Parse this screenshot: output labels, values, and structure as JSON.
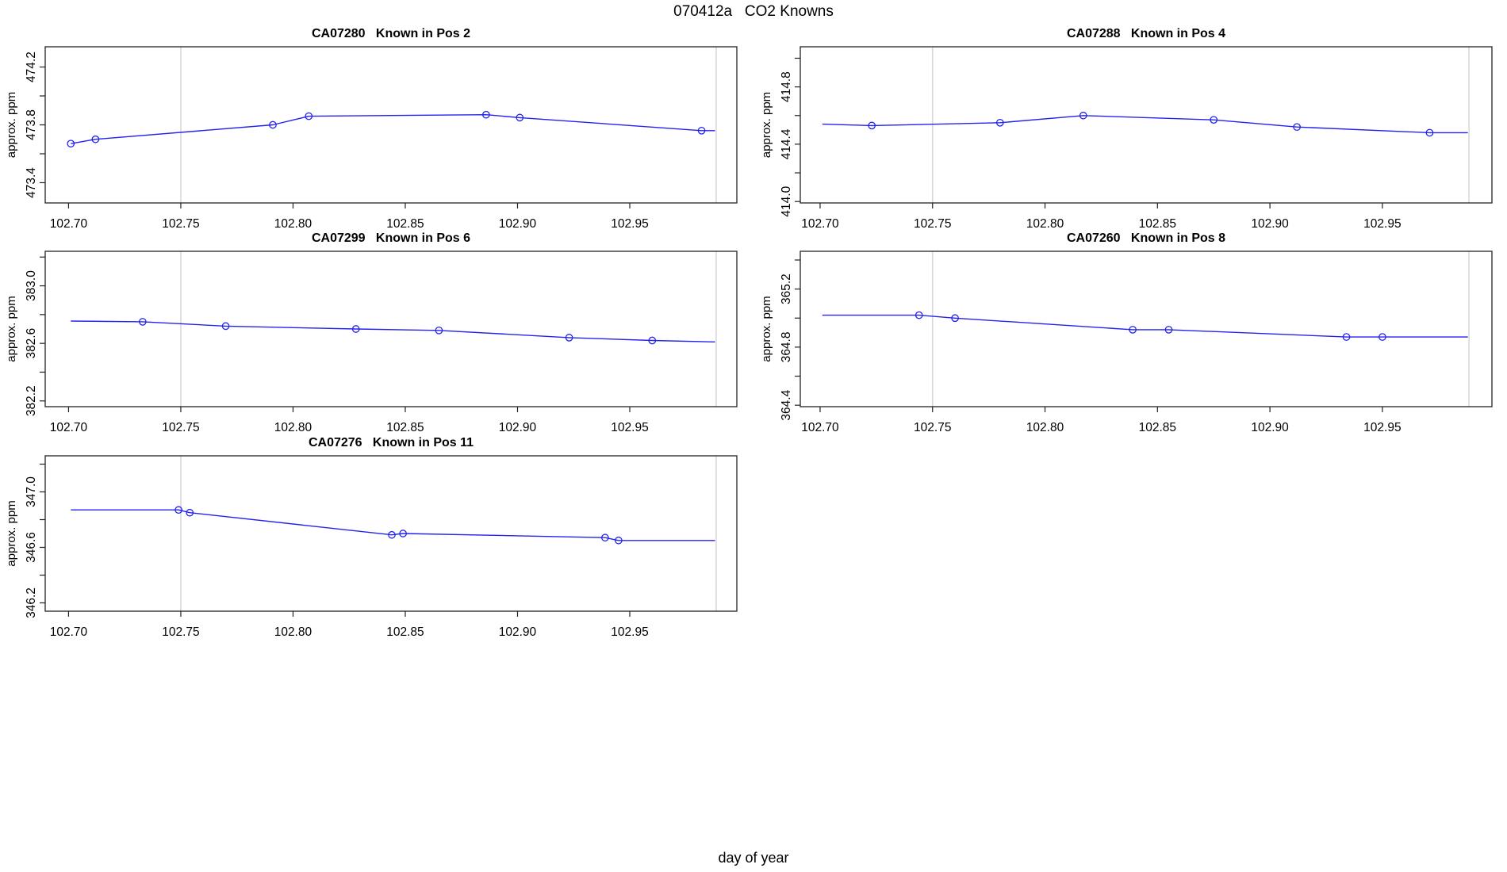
{
  "page": {
    "title": "070412a   CO2 Knowns",
    "xlabel": "day of year"
  },
  "colors": {
    "series_blue": "#2222ee",
    "reference_gray": "#d8d8d8",
    "axis_black": "#222222",
    "text_black": "#000000"
  },
  "x_ticks": [
    {
      "v": 102.7,
      "t": "102.70"
    },
    {
      "v": 102.75,
      "t": "102.75"
    },
    {
      "v": 102.8,
      "t": "102.80"
    },
    {
      "v": 102.85,
      "t": "102.85"
    },
    {
      "v": 102.9,
      "t": "102.90"
    },
    {
      "v": 102.95,
      "t": "102.95"
    }
  ],
  "chart_data": [
    {
      "type": "line",
      "title": "CA07280   Known in Pos 2",
      "ylabel": "approx. ppm",
      "grid": {
        "row": 0,
        "col": 0
      },
      "xlim": [
        102.6896,
        102.9977
      ],
      "ylim": [
        473.26,
        474.34
      ],
      "legend_position": "none",
      "grid_lines": "off",
      "yticks": [
        {
          "v": 473.4,
          "t": "473.4"
        },
        {
          "v": 473.6,
          "t": ""
        },
        {
          "v": 473.8,
          "t": "473.8"
        },
        {
          "v": 474.0,
          "t": ""
        },
        {
          "v": 474.2,
          "t": "474.2"
        }
      ],
      "vlines": [
        102.75,
        102.9885
      ],
      "line": [
        [
          102.701,
          473.67
        ],
        [
          102.712,
          473.7
        ],
        [
          102.791,
          473.8
        ],
        [
          102.807,
          473.86
        ],
        [
          102.886,
          473.87
        ],
        [
          102.901,
          473.85
        ],
        [
          102.982,
          473.76
        ],
        [
          102.988,
          473.76
        ]
      ],
      "points": [
        [
          102.701,
          473.67
        ],
        [
          102.712,
          473.7
        ],
        [
          102.791,
          473.8
        ],
        [
          102.807,
          473.86
        ],
        [
          102.886,
          473.87
        ],
        [
          102.901,
          473.85
        ],
        [
          102.982,
          473.76
        ]
      ]
    },
    {
      "type": "line",
      "title": "CA07288   Known in Pos 4",
      "ylabel": "approx. ppm",
      "grid": {
        "row": 0,
        "col": 1
      },
      "xlim": [
        102.6912,
        102.9987
      ],
      "ylim": [
        413.99,
        415.08
      ],
      "legend_position": "none",
      "grid_lines": "off",
      "yticks": [
        {
          "v": 414.0,
          "t": "414.0"
        },
        {
          "v": 414.2,
          "t": ""
        },
        {
          "v": 414.4,
          "t": "414.4"
        },
        {
          "v": 414.6,
          "t": ""
        },
        {
          "v": 414.8,
          "t": "414.8"
        },
        {
          "v": 415.0,
          "t": ""
        }
      ],
      "vlines": [
        102.75,
        102.9885
      ],
      "line": [
        [
          102.701,
          414.54
        ],
        [
          102.723,
          414.53
        ],
        [
          102.78,
          414.55
        ],
        [
          102.817,
          414.6
        ],
        [
          102.875,
          414.57
        ],
        [
          102.912,
          414.52
        ],
        [
          102.971,
          414.48
        ],
        [
          102.988,
          414.48
        ]
      ],
      "points": [
        [
          102.723,
          414.53
        ],
        [
          102.78,
          414.55
        ],
        [
          102.817,
          414.6
        ],
        [
          102.875,
          414.57
        ],
        [
          102.912,
          414.52
        ],
        [
          102.971,
          414.48
        ]
      ]
    },
    {
      "type": "line",
      "title": "CA07299   Known in Pos 6",
      "ylabel": "approx. ppm",
      "grid": {
        "row": 1,
        "col": 0
      },
      "xlim": [
        102.6896,
        102.9977
      ],
      "ylim": [
        382.16,
        383.24
      ],
      "legend_position": "none",
      "grid_lines": "off",
      "yticks": [
        {
          "v": 382.2,
          "t": "382.2"
        },
        {
          "v": 382.4,
          "t": ""
        },
        {
          "v": 382.6,
          "t": "382.6"
        },
        {
          "v": 382.8,
          "t": ""
        },
        {
          "v": 383.0,
          "t": "383.0"
        },
        {
          "v": 383.2,
          "t": ""
        }
      ],
      "vlines": [
        102.75,
        102.9885
      ],
      "line": [
        [
          102.701,
          382.755
        ],
        [
          102.733,
          382.75
        ],
        [
          102.77,
          382.72
        ],
        [
          102.828,
          382.7
        ],
        [
          102.865,
          382.69
        ],
        [
          102.923,
          382.64
        ],
        [
          102.96,
          382.62
        ],
        [
          102.988,
          382.61
        ]
      ],
      "points": [
        [
          102.733,
          382.75
        ],
        [
          102.77,
          382.72
        ],
        [
          102.828,
          382.7
        ],
        [
          102.865,
          382.69
        ],
        [
          102.923,
          382.64
        ],
        [
          102.96,
          382.62
        ]
      ]
    },
    {
      "type": "line",
      "title": "CA07260   Known in Pos 8",
      "ylabel": "approx. ppm",
      "grid": {
        "row": 1,
        "col": 1
      },
      "xlim": [
        102.6912,
        102.9987
      ],
      "ylim": [
        364.39,
        365.46
      ],
      "legend_position": "none",
      "grid_lines": "off",
      "yticks": [
        {
          "v": 364.4,
          "t": "364.4"
        },
        {
          "v": 364.6,
          "t": ""
        },
        {
          "v": 364.8,
          "t": "364.8"
        },
        {
          "v": 365.0,
          "t": ""
        },
        {
          "v": 365.2,
          "t": "365.2"
        },
        {
          "v": 365.4,
          "t": ""
        }
      ],
      "vlines": [
        102.75,
        102.9885
      ],
      "line": [
        [
          102.701,
          365.02
        ],
        [
          102.744,
          365.02
        ],
        [
          102.76,
          365.0
        ],
        [
          102.839,
          364.92
        ],
        [
          102.855,
          364.92
        ],
        [
          102.934,
          364.87
        ],
        [
          102.95,
          364.87
        ],
        [
          102.988,
          364.87
        ]
      ],
      "points": [
        [
          102.744,
          365.02
        ],
        [
          102.76,
          365.0
        ],
        [
          102.839,
          364.92
        ],
        [
          102.855,
          364.92
        ],
        [
          102.934,
          364.87
        ],
        [
          102.95,
          364.87
        ]
      ]
    },
    {
      "type": "line",
      "title": "CA07276   Known in Pos 11",
      "ylabel": "approx. ppm",
      "grid": {
        "row": 2,
        "col": 0
      },
      "xlim": [
        102.6896,
        102.9977
      ],
      "ylim": [
        346.14,
        347.26
      ],
      "legend_position": "none",
      "grid_lines": "off",
      "yticks": [
        {
          "v": 346.2,
          "t": "346.2"
        },
        {
          "v": 346.4,
          "t": ""
        },
        {
          "v": 346.6,
          "t": "346.6"
        },
        {
          "v": 346.8,
          "t": ""
        },
        {
          "v": 347.0,
          "t": "347.0"
        },
        {
          "v": 347.2,
          "t": ""
        }
      ],
      "vlines": [
        102.75,
        102.9885
      ],
      "line": [
        [
          102.701,
          346.87
        ],
        [
          102.749,
          346.87
        ],
        [
          102.754,
          346.85
        ],
        [
          102.844,
          346.69
        ],
        [
          102.849,
          346.7
        ],
        [
          102.939,
          346.67
        ],
        [
          102.945,
          346.65
        ],
        [
          102.988,
          346.65
        ]
      ],
      "points": [
        [
          102.749,
          346.87
        ],
        [
          102.754,
          346.85
        ],
        [
          102.844,
          346.69
        ],
        [
          102.849,
          346.7
        ],
        [
          102.939,
          346.67
        ],
        [
          102.945,
          346.65
        ]
      ]
    }
  ]
}
